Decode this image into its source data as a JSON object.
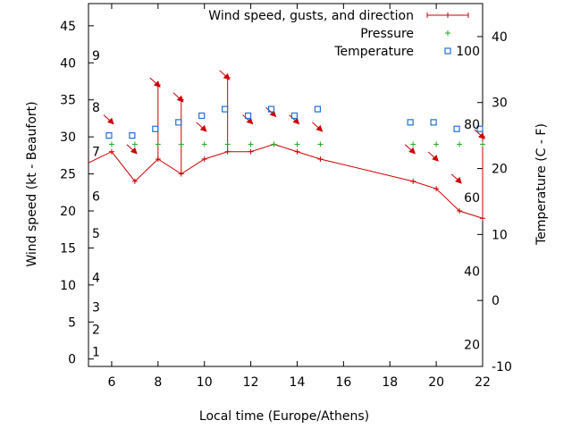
{
  "chart_data": {
    "type": "line",
    "xlabel": "Local time (Europe/Athens)",
    "ylabel": "Wind speed (kt - Beaufort)",
    "y2label": "Temperature (C - F)",
    "xlim": [
      5,
      22
    ],
    "ylim": [
      -1,
      48
    ],
    "y2lim": [
      -10,
      45
    ],
    "x_ticks": [
      6,
      8,
      10,
      12,
      14,
      16,
      18,
      20,
      22
    ],
    "y_ticks": [
      0,
      5,
      10,
      15,
      20,
      25,
      30,
      35,
      40,
      45
    ],
    "y2_ticks": [
      -10,
      0,
      10,
      20,
      30,
      40
    ],
    "beaufort_labels": [
      {
        "label": "1",
        "kt": 1
      },
      {
        "label": "2",
        "kt": 4
      },
      {
        "label": "3",
        "kt": 7
      },
      {
        "label": "4",
        "kt": 11
      },
      {
        "label": "5",
        "kt": 17
      },
      {
        "label": "6",
        "kt": 22
      },
      {
        "label": "7",
        "kt": 28
      },
      {
        "label": "8",
        "kt": 34
      },
      {
        "label": "9",
        "kt": 41
      }
    ],
    "fahrenheit_labels": [
      {
        "label": "20",
        "c": -6.7
      },
      {
        "label": "40",
        "c": 4.4
      },
      {
        "label": "60",
        "c": 15.6
      },
      {
        "label": "80",
        "c": 26.7
      },
      {
        "label": "100",
        "c": 37.8
      }
    ],
    "legend": {
      "position": "top-right",
      "entries": [
        "Wind speed, gusts, and direction",
        "Pressure",
        "Temperature"
      ]
    },
    "series": [
      {
        "name": "Wind speed, gusts, and direction",
        "color": "#cc0000",
        "points": [
          {
            "x": 5,
            "y": 26.5,
            "gust": null,
            "dir": null
          },
          {
            "x": 6,
            "y": 28,
            "gust": null,
            "dir": 135
          },
          {
            "x": 7,
            "y": 24,
            "gust": null,
            "dir": 135
          },
          {
            "x": 8,
            "y": 27,
            "gust": 37,
            "dir": 135
          },
          {
            "x": 9,
            "y": 25,
            "gust": 35,
            "dir": 135
          },
          {
            "x": 10,
            "y": 27,
            "gust": null,
            "dir": 135
          },
          {
            "x": 11,
            "y": 28,
            "gust": 38,
            "dir": 135
          },
          {
            "x": 12,
            "y": 28,
            "gust": null,
            "dir": 135
          },
          {
            "x": 13,
            "y": 29,
            "gust": null,
            "dir": 135
          },
          {
            "x": 14,
            "y": 28,
            "gust": null,
            "dir": 135
          },
          {
            "x": 15,
            "y": 27,
            "gust": null,
            "dir": 135
          },
          {
            "x": 19,
            "y": 24,
            "gust": null,
            "dir": 135
          },
          {
            "x": 20,
            "y": 23,
            "gust": null,
            "dir": 135
          },
          {
            "x": 21,
            "y": 20,
            "gust": null,
            "dir": 135
          },
          {
            "x": 22,
            "y": 19,
            "gust": 30,
            "dir": 135
          }
        ]
      },
      {
        "name": "Pressure",
        "color": "#22aa22",
        "x": [
          6,
          7,
          8,
          9,
          10,
          11,
          12,
          13,
          14,
          15,
          19,
          20,
          21,
          22
        ],
        "y": [
          29,
          29,
          29,
          29,
          29,
          29,
          29,
          29,
          29,
          29,
          29,
          29,
          29,
          29
        ]
      },
      {
        "name": "Temperature",
        "color": "#1f6fd6",
        "axis": "y2",
        "x": [
          6,
          7,
          8,
          9,
          10,
          11,
          12,
          13,
          14,
          15,
          19,
          20,
          21,
          22
        ],
        "y": [
          25,
          25,
          26,
          27,
          28,
          29,
          28,
          29,
          28,
          29,
          27,
          27,
          26,
          26
        ]
      }
    ]
  }
}
